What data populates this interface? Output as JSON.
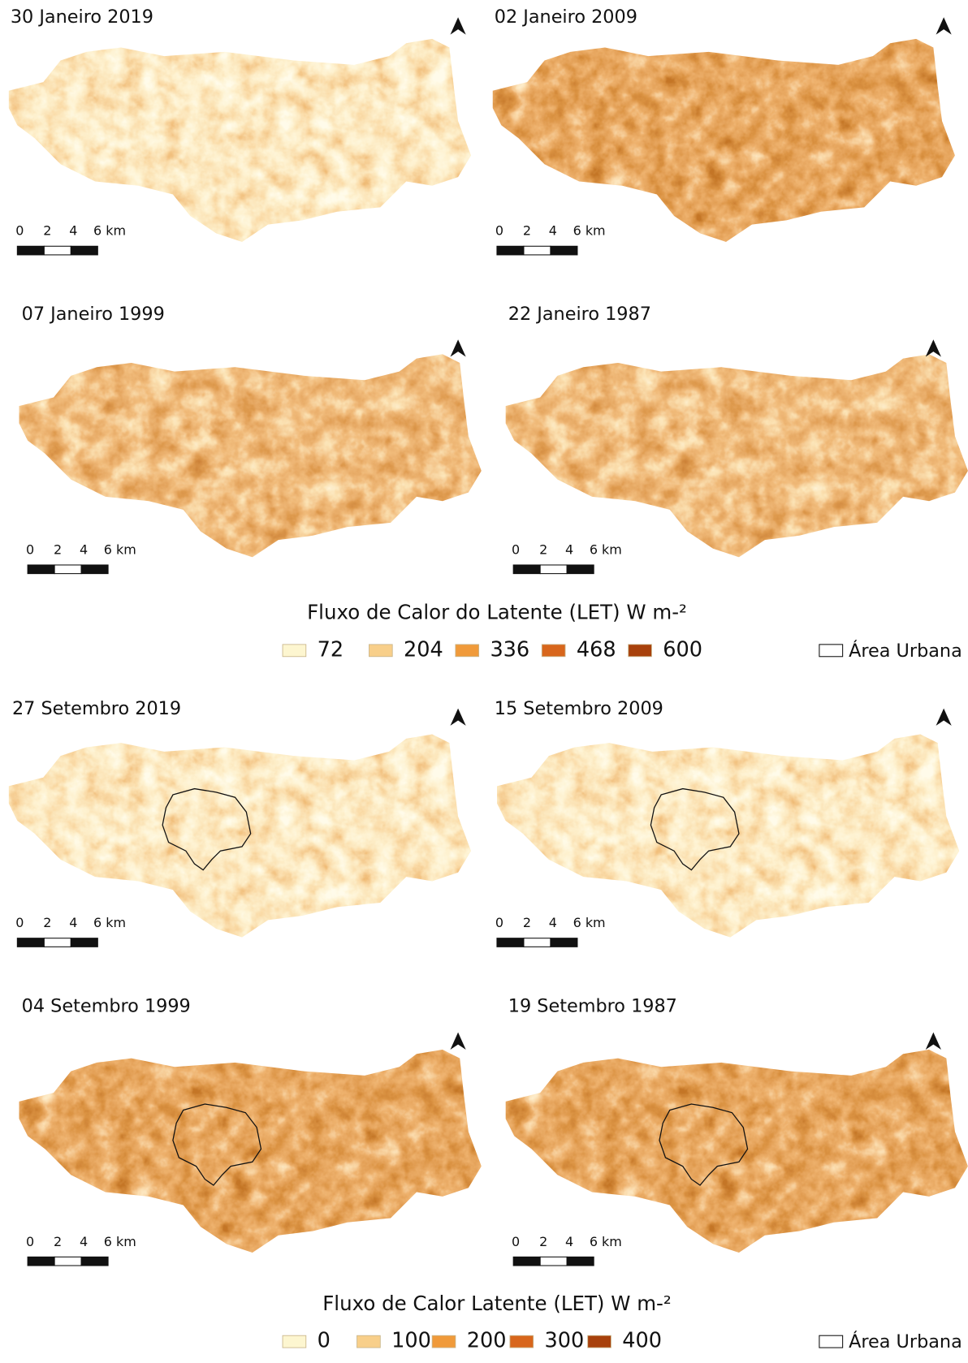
{
  "panels": [
    {
      "title": "30 Janeiro 2019",
      "scale_labels": [
        "0",
        "2",
        "4",
        "6 km"
      ]
    },
    {
      "title": "02 Janeiro 2009",
      "scale_labels": [
        "0",
        "2",
        "4",
        "6 km"
      ]
    },
    {
      "title": "07 Janeiro 1999",
      "scale_labels": [
        "0",
        "2",
        "4",
        "6 km"
      ]
    },
    {
      "title": "22 Janeiro 1987",
      "scale_labels": [
        "0",
        "2",
        "4",
        "6 km"
      ]
    },
    {
      "title": "27 Setembro 2019",
      "scale_labels": [
        "0",
        "2",
        "4",
        "6 km"
      ]
    },
    {
      "title": "15 Setembro 2009",
      "scale_labels": [
        "0",
        "2",
        "4",
        "6 km"
      ]
    },
    {
      "title": "04 Setembro 1999",
      "scale_labels": [
        "0",
        "2",
        "4",
        "6 km"
      ]
    },
    {
      "title": "19 Setembro 1987",
      "scale_labels": [
        "0",
        "2",
        "4",
        "6 km"
      ]
    }
  ],
  "legends": [
    {
      "title": "Fluxo de Calor do Latente (LET) W m-²",
      "items": [
        "72",
        "204",
        "336",
        "468",
        "600"
      ],
      "urban_label": "Área Urbana"
    },
    {
      "title": "Fluxo de Calor Latente (LET) W m-²",
      "items": [
        "0",
        "100",
        "200",
        "300",
        "400"
      ],
      "urban_label": "Área Urbana"
    }
  ]
}
